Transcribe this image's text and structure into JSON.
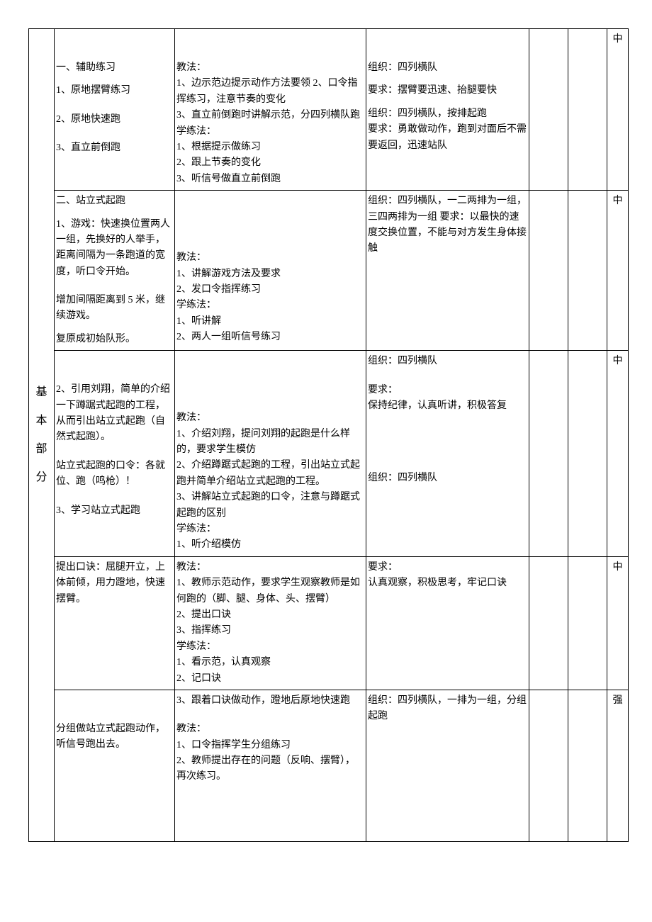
{
  "section_label": [
    "基",
    "本",
    "部",
    "分"
  ],
  "content": {
    "b1_title": "一、辅助练习",
    "b1_i1": "1、原地摆臂练习",
    "b1_i2": "2、原地快速跑",
    "b1_i3": "3、直立前倒跑",
    "b2_title": "二、站立式起跑",
    "b2_p1": "1、游戏：快速换位置两人一组，先换好的人举手，距离间隔为一条跑道的宽度，听口令开始。",
    "b2_p2": "增加间隔距离到 5 米，继续游戏。",
    "b2_p3": "复原成初始队形。",
    "b3_p1": "2、引用刘翔，简单的介绍一下蹲踞式起跑的工程，从而引出站立式起跑（自然式起跑）。",
    "b3_p2": "站立式起跑的口令：各就位、跑（鸣枪）！",
    "b3_p3": "3、学习站立式起跑",
    "b3_p4": "提出口诀：屈腿开立，上体前倾，用力蹬地，快速摆臂。",
    "b4_p1": "分组做站立式起跑动作，听信号跑出去。"
  },
  "method": {
    "m1_t": "教法：",
    "m1_1": "1、边示范边提示动作方法要领 2、口令指挥练习，注意节奏的变化",
    "m1_2": "3、直立前倒跑时讲解示范，分四列横队跑",
    "m1_lt": "学练法：",
    "m1_l1": "1、根据提示做练习",
    "m1_l2": "2、跟上节奏的变化",
    "m1_l3": "3、听信号做直立前倒跑",
    "m2_t": "教法：",
    "m2_1": "1、讲解游戏方法及要求",
    "m2_2": "2、发口令指挥练习",
    "m2_lt": "学练法：",
    "m2_l1": "1、听讲解",
    "m2_l2": "2、两人一组听信号练习",
    "m3_t": "教法：",
    "m3_1": "1、介绍刘翔，提问刘翔的起跑是什么样的，要求学生模仿",
    "m3_2": "2、介绍蹲踞式起跑的工程，引出站立式起跑并简单介绍站立式起跑的工程。",
    "m3_3": "3、讲解站立式起跑的口令，注意与蹲踞式起跑的区别",
    "m3_lt": "学练法：",
    "m3_l1": "1、听介绍模仿",
    "m4_t": "教法：",
    "m4_1": "1、教师示范动作，要求学生观察教师是如何跑的（脚、腿、身体、头、摆臂）",
    "m4_2": "2、提出口诀",
    "m4_3": "3、指挥练习",
    "m4_lt": "学练法：",
    "m4_l1": "1、看示范，认真观察",
    "m4_l2": "2、记口诀",
    "m4_l3": "3、跟着口诀做动作，蹬地后原地快速跑",
    "m5_t": "教法：",
    "m5_1": "1、口令指挥学生分组练习",
    "m5_2": "2、教师提出存在的问题（反响、摆臂），再次练习。"
  },
  "org": {
    "o1_1": "组织：四列横队",
    "o1_2": "要求：摆臂要迅速、抬腿要快",
    "o1_3": "组织：四列横队，按排起跑",
    "o1_4": "要求：勇敢做动作，跑到对面后不需要返回，迅速站队",
    "o2_1": "组织：四列横队，一二两排为一组，三四两排为一组 要求：以最快的速度交换位置，不能与对方发生身体接触",
    "o3_1": "组织：四列横队",
    "o3_rt": "要求：",
    "o3_r1": "保持纪律，认真听讲，积极答复",
    "o4_1": "组织：四列横队",
    "o4_rt": "要求：",
    "o4_r1": "认真观察，积极思考，牢记口诀",
    "o5_1": "组织：四列横队，一排为一组，分组起跑"
  },
  "intensity": {
    "i1": "中",
    "i2": "中",
    "i3": "中",
    "i4": "中",
    "i5": "强"
  }
}
